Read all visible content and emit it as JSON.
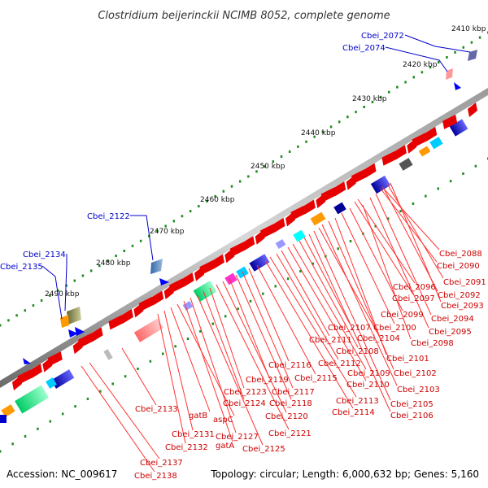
{
  "title": "Clostridium beijerinckii NCIMB 8052, complete genome",
  "footer": {
    "accession": "Accession: NC_009617",
    "topology": "Topology: circular; Length: 6,000,632 bp; Genes: 5,160"
  },
  "scale_labels": [
    "2410 kbp",
    "2420 kbp",
    "2430 kbp",
    "2440 kbp",
    "2450 kbp",
    "2460 kbp",
    "2470 kbp",
    "2480 kbp",
    "2490 kbp"
  ],
  "blue_labels": [
    "Cbei_2072",
    "Cbei_2074",
    "Cbei_2122",
    "Cbei_2134",
    "Cbei_2135"
  ],
  "red_labels": [
    "Cbei_2088",
    "Cbei_2090",
    "Cbei_2091",
    "Cbei_2092",
    "Cbei_2093",
    "Cbei_2094",
    "Cbei_2095",
    "Cbei_2096",
    "Cbei_2097",
    "Cbei_2098",
    "Cbei_2099",
    "Cbei_2100",
    "Cbei_2101",
    "Cbei_2102",
    "Cbei_2103",
    "Cbei_2104",
    "Cbei_2105",
    "Cbei_2106",
    "Cbei_2107",
    "Cbei_2108",
    "Cbei_2109",
    "Cbei_2110",
    "Cbei_2111",
    "Cbei_2112",
    "Cbei_2113",
    "Cbei_2114",
    "Cbei_2115",
    "Cbei_2116",
    "Cbei_2117",
    "Cbei_2118",
    "Cbei_2119",
    "Cbei_2120",
    "Cbei_2121",
    "Cbei_2123",
    "Cbei_2124",
    "Cbei_2125",
    "Cbei_2127",
    "gatA",
    "aspC",
    "gatB",
    "Cbei_2131",
    "Cbei_2132",
    "Cbei_2133",
    "Cbei_2137",
    "Cbei_2138"
  ],
  "colors": {
    "forward": "#e60000",
    "reverse": "#0000ff",
    "backbone": "#808080",
    "scale_dots": "#1f8a1f",
    "label_red": "#cc0000",
    "label_blue": "#0000cc"
  }
}
